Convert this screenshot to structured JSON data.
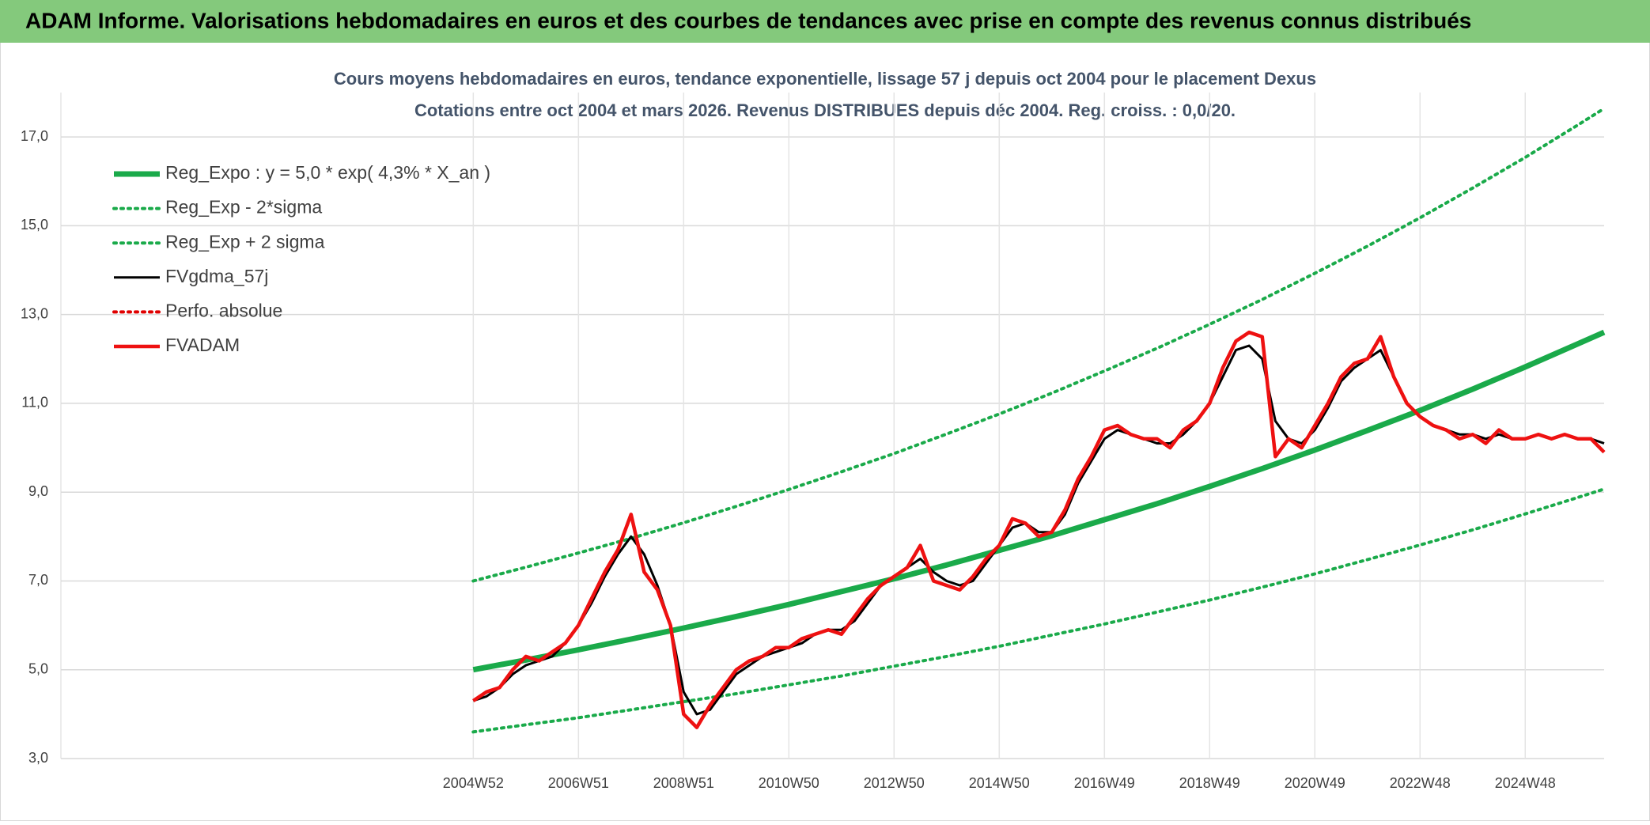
{
  "header": {
    "title": "ADAM Informe. Valorisations hebdomadaires en euros et des courbes de tendances avec prise en compte des revenus connus distribués"
  },
  "chart_data": {
    "type": "line",
    "title": "Cours moyens hebdomadaires en euros, tendance exponentielle, lissage 57 j depuis oct 2004 pour le placement Dexus",
    "subtitle": "Cotations entre oct 2004 et mars 2026. Revenus DISTRIBUES depuis déc 2004. Reg. croiss. : 0,0/20.",
    "xlim": [
      1997.16,
      2026.5
    ],
    "xticks": [
      {
        "value": 2005,
        "label": "2004W52"
      },
      {
        "value": 2007,
        "label": "2006W51"
      },
      {
        "value": 2009,
        "label": "2008W51"
      },
      {
        "value": 2011,
        "label": "2010W50"
      },
      {
        "value": 2013,
        "label": "2012W50"
      },
      {
        "value": 2015,
        "label": "2014W50"
      },
      {
        "value": 2017,
        "label": "2016W49"
      },
      {
        "value": 2019,
        "label": "2018W49"
      },
      {
        "value": 2021,
        "label": "2020W49"
      },
      {
        "value": 2023,
        "label": "2022W48"
      },
      {
        "value": 2025,
        "label": "2024W48"
      }
    ],
    "ylim": [
      3,
      18
    ],
    "yticks": [
      {
        "value": 3,
        "label": "3,0"
      },
      {
        "value": 5,
        "label": "5,0"
      },
      {
        "value": 7,
        "label": "7,0"
      },
      {
        "value": 9,
        "label": "9,0"
      },
      {
        "value": 11,
        "label": "11,0"
      },
      {
        "value": 13,
        "label": "13,0"
      },
      {
        "value": 15,
        "label": "15,0"
      },
      {
        "value": 17,
        "label": "17,0"
      }
    ],
    "grid": true,
    "legend": "upper left",
    "x": [
      2005,
      2005.25,
      2005.5,
      2005.75,
      2006,
      2006.25,
      2006.5,
      2006.75,
      2007,
      2007.25,
      2007.5,
      2007.75,
      2008,
      2008.25,
      2008.5,
      2008.75,
      2009,
      2009.25,
      2009.5,
      2009.75,
      2010,
      2010.25,
      2010.5,
      2010.75,
      2011,
      2011.25,
      2011.5,
      2011.75,
      2012,
      2012.25,
      2012.5,
      2012.75,
      2013,
      2013.25,
      2013.5,
      2013.75,
      2014,
      2014.25,
      2014.5,
      2014.75,
      2015,
      2015.25,
      2015.5,
      2015.75,
      2016,
      2016.25,
      2016.5,
      2016.75,
      2017,
      2017.25,
      2017.5,
      2017.75,
      2018,
      2018.25,
      2018.5,
      2018.75,
      2019,
      2019.25,
      2019.5,
      2019.75,
      2020,
      2020.25,
      2020.5,
      2020.75,
      2021,
      2021.25,
      2021.5,
      2021.75,
      2022,
      2022.25,
      2022.5,
      2022.75,
      2023,
      2023.25,
      2023.5,
      2023.75,
      2024,
      2024.25,
      2024.5,
      2024.75,
      2025,
      2025.25,
      2025.5,
      2025.75,
      2026,
      2026.25,
      2026.5
    ],
    "series": [
      {
        "name": "Reg_Expo : y = 5,0 * exp( 4,3% *  X_an )",
        "color": "#1aaa4a",
        "style": "thick",
        "x": [
          2005,
          2006,
          2007,
          2008,
          2009,
          2010,
          2011,
          2012,
          2013,
          2014,
          2015,
          2016,
          2017,
          2018,
          2019,
          2020,
          2021,
          2022,
          2023,
          2024,
          2025,
          2026,
          2026.5
        ],
        "values": [
          5.0,
          5.22,
          5.45,
          5.69,
          5.94,
          6.2,
          6.47,
          6.76,
          7.05,
          7.36,
          7.69,
          8.02,
          8.38,
          8.74,
          9.13,
          9.53,
          9.95,
          10.39,
          10.84,
          11.32,
          11.82,
          12.34,
          12.6
        ]
      },
      {
        "name": "Reg_Exp - 2*sigma",
        "color": "#1aaa4a",
        "style": "dotted",
        "x": [
          2005,
          2006,
          2007,
          2008,
          2009,
          2010,
          2011,
          2012,
          2013,
          2014,
          2015,
          2016,
          2017,
          2018,
          2019,
          2020,
          2021,
          2022,
          2023,
          2024,
          2025,
          2026,
          2026.5
        ],
        "values": [
          3.6,
          3.76,
          3.92,
          4.1,
          4.28,
          4.46,
          4.66,
          4.86,
          5.08,
          5.3,
          5.53,
          5.78,
          6.03,
          6.3,
          6.57,
          6.86,
          7.16,
          7.48,
          7.81,
          8.15,
          8.51,
          8.88,
          9.07
        ]
      },
      {
        "name": "Reg_Exp + 2 sigma",
        "color": "#1aaa4a",
        "style": "dotted",
        "x": [
          2005,
          2006,
          2007,
          2008,
          2009,
          2010,
          2011,
          2012,
          2013,
          2014,
          2015,
          2016,
          2017,
          2018,
          2019,
          2020,
          2021,
          2022,
          2023,
          2024,
          2025,
          2026,
          2026.5
        ],
        "values": [
          7.0,
          7.31,
          7.63,
          7.96,
          8.31,
          8.68,
          9.06,
          9.46,
          9.87,
          10.31,
          10.76,
          11.23,
          11.73,
          12.24,
          12.78,
          13.34,
          13.93,
          14.54,
          15.18,
          15.85,
          16.54,
          17.27,
          17.64
        ]
      },
      {
        "name": "FVgdma_57j",
        "color": "#000000",
        "style": "solid",
        "values": [
          4.3,
          4.4,
          4.6,
          4.9,
          5.1,
          5.2,
          5.3,
          5.6,
          6.0,
          6.5,
          7.1,
          7.6,
          8.0,
          7.6,
          6.9,
          6.0,
          4.5,
          4.0,
          4.1,
          4.5,
          4.9,
          5.1,
          5.3,
          5.4,
          5.5,
          5.6,
          5.8,
          5.9,
          5.9,
          6.1,
          6.5,
          6.9,
          7.1,
          7.3,
          7.5,
          7.2,
          7.0,
          6.9,
          7.0,
          7.4,
          7.8,
          8.2,
          8.3,
          8.1,
          8.1,
          8.5,
          9.2,
          9.7,
          10.2,
          10.4,
          10.3,
          10.2,
          10.1,
          10.1,
          10.3,
          10.6,
          11.0,
          11.6,
          12.2,
          12.3,
          12.0,
          10.6,
          10.2,
          10.1,
          10.4,
          10.9,
          11.5,
          11.8,
          12.0,
          12.2,
          11.6,
          11.0,
          10.7,
          10.5,
          10.4,
          10.3,
          10.3,
          10.2,
          10.3,
          10.2,
          10.2,
          10.3,
          10.2,
          10.3,
          10.2,
          10.2,
          10.1
        ]
      },
      {
        "name": "Perfo. absolue",
        "color": "#e00000",
        "style": "dotted"
      },
      {
        "name": "FVADAM",
        "color": "#ee1111",
        "style": "bold",
        "values": [
          4.3,
          4.5,
          4.6,
          5.0,
          5.3,
          5.2,
          5.4,
          5.6,
          6.0,
          6.6,
          7.2,
          7.7,
          8.5,
          7.2,
          6.8,
          6.0,
          4.0,
          3.7,
          4.2,
          4.6,
          5.0,
          5.2,
          5.3,
          5.5,
          5.5,
          5.7,
          5.8,
          5.9,
          5.8,
          6.2,
          6.6,
          6.9,
          7.1,
          7.3,
          7.8,
          7.0,
          6.9,
          6.8,
          7.1,
          7.5,
          7.8,
          8.4,
          8.3,
          8.0,
          8.1,
          8.6,
          9.3,
          9.8,
          10.4,
          10.5,
          10.3,
          10.2,
          10.2,
          10.0,
          10.4,
          10.6,
          11.0,
          11.8,
          12.4,
          12.6,
          12.5,
          9.8,
          10.2,
          10.0,
          10.5,
          11.0,
          11.6,
          11.9,
          12.0,
          12.5,
          11.6,
          11.0,
          10.7,
          10.5,
          10.4,
          10.2,
          10.3,
          10.1,
          10.4,
          10.2,
          10.2,
          10.3,
          10.2,
          10.3,
          10.2,
          10.2,
          9.9
        ]
      }
    ]
  }
}
